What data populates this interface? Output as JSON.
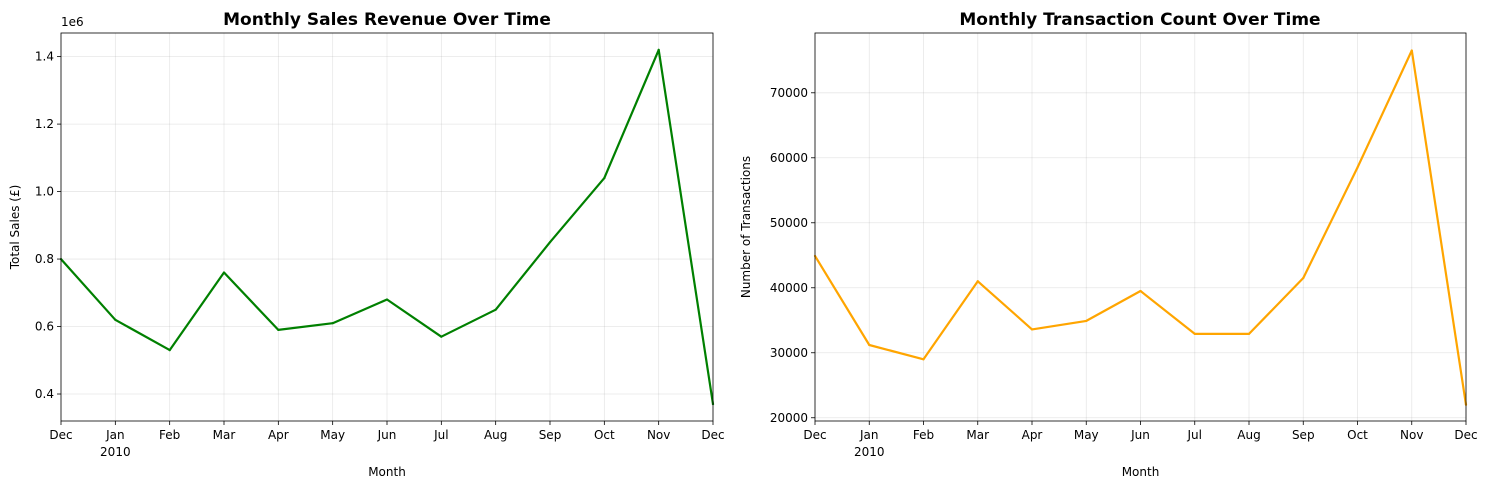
{
  "chart_data": [
    {
      "type": "line",
      "title": "Monthly Sales Revenue Over Time",
      "xlabel": "Month",
      "ylabel": "Total Sales (£)",
      "offset_label": "1e6",
      "x": [
        "2009-12",
        "2010-01",
        "2010-02",
        "2010-03",
        "2010-04",
        "2010-05",
        "2010-06",
        "2010-07",
        "2010-08",
        "2010-09",
        "2010-10",
        "2010-11",
        "2010-12"
      ],
      "x_tick_labels": [
        "Dec",
        "Jan",
        "Feb",
        "Mar",
        "Apr",
        "May",
        "Jun",
        "Jul",
        "Aug",
        "Sep",
        "Oct",
        "Nov",
        "Dec"
      ],
      "x_year_label": "2010",
      "series": [
        {
          "values": [
            0.8,
            0.62,
            0.53,
            0.76,
            0.59,
            0.61,
            0.68,
            0.57,
            0.65,
            0.85,
            1.04,
            1.42,
            0.37
          ],
          "color": "#008000"
        }
      ],
      "ylim": [
        0.32,
        1.47
      ],
      "yticks": [
        0.4,
        0.6,
        0.8,
        1.0,
        1.2,
        1.4
      ],
      "ytick_labels": [
        "0.4",
        "0.6",
        "0.8",
        "1.0",
        "1.2",
        "1.4"
      ],
      "grid": true
    },
    {
      "type": "line",
      "title": "Monthly Transaction Count Over Time",
      "xlabel": "Month",
      "ylabel": "Number of Transactions",
      "x": [
        "2009-12",
        "2010-01",
        "2010-02",
        "2010-03",
        "2010-04",
        "2010-05",
        "2010-06",
        "2010-07",
        "2010-08",
        "2010-09",
        "2010-10",
        "2010-11",
        "2010-12"
      ],
      "x_tick_labels": [
        "Dec",
        "Jan",
        "Feb",
        "Mar",
        "Apr",
        "May",
        "Jun",
        "Jul",
        "Aug",
        "Sep",
        "Oct",
        "Nov",
        "Dec"
      ],
      "x_year_label": "2010",
      "series": [
        {
          "values": [
            44900,
            31200,
            29000,
            41000,
            33600,
            34900,
            39500,
            32900,
            32900,
            41500,
            58500,
            76500,
            22000
          ],
          "color": "#FFA500"
        }
      ],
      "ylim": [
        19500,
        79200
      ],
      "yticks": [
        20000,
        30000,
        40000,
        50000,
        60000,
        70000
      ],
      "ytick_labels": [
        "20000",
        "30000",
        "40000",
        "50000",
        "60000",
        "70000"
      ],
      "grid": true
    }
  ]
}
